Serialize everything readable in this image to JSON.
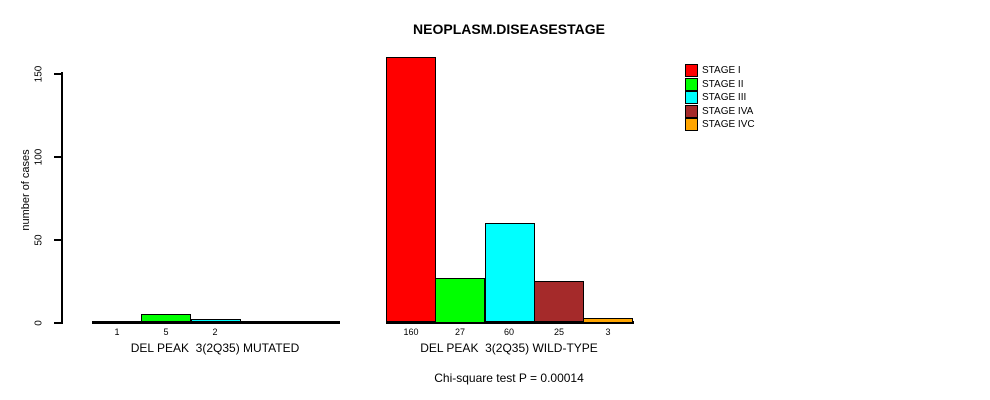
{
  "chart_data": {
    "type": "bar",
    "title": "NEOPLASM.DISEASESTAGE",
    "ylabel": "number of cases",
    "xlabel": "",
    "ylim": [
      0,
      160
    ],
    "yticks": [
      0,
      50,
      100,
      150
    ],
    "grid": false,
    "legend_position": "top-right",
    "legend": [
      {
        "label": "STAGE I",
        "color": "#FF0000"
      },
      {
        "label": "STAGE II",
        "color": "#00FF00"
      },
      {
        "label": "STAGE III",
        "color": "#00FFFF"
      },
      {
        "label": "STAGE IVA",
        "color": "#A52A2A"
      },
      {
        "label": "STAGE IVC",
        "color": "#FFA500"
      }
    ],
    "groups": [
      {
        "label": "DEL PEAK  3(2Q35) MUTATED",
        "slots": 5,
        "bars": [
          {
            "stage": "STAGE I",
            "value": 1,
            "color": "#FF0000"
          },
          {
            "stage": "STAGE II",
            "value": 5,
            "color": "#00FF00"
          },
          {
            "stage": "STAGE III",
            "value": 2,
            "color": "#00FFFF"
          }
        ]
      },
      {
        "label": "DEL PEAK  3(2Q35) WILD-TYPE",
        "slots": 5,
        "bars": [
          {
            "stage": "STAGE I",
            "value": 160,
            "color": "#FF0000"
          },
          {
            "stage": "STAGE II",
            "value": 27,
            "color": "#00FF00"
          },
          {
            "stage": "STAGE III",
            "value": 60,
            "color": "#00FFFF"
          },
          {
            "stage": "STAGE IVA",
            "value": 25,
            "color": "#A52A2A"
          },
          {
            "stage": "STAGE IVC",
            "value": 3,
            "color": "#FFA500"
          }
        ]
      }
    ],
    "annotation": "Chi-square test P = 0.00014"
  }
}
